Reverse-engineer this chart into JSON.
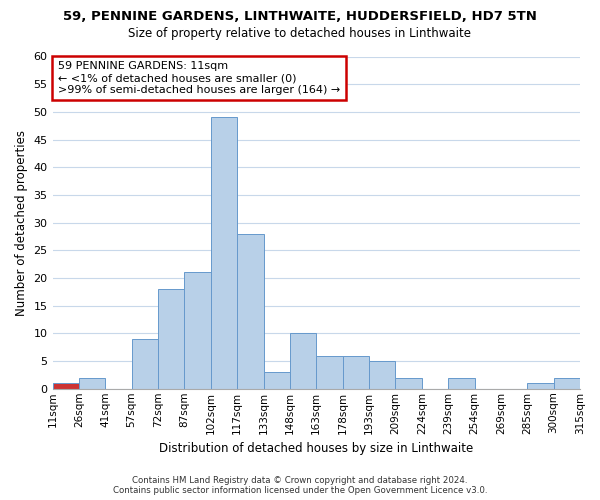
{
  "title": "59, PENNINE GARDENS, LINTHWAITE, HUDDERSFIELD, HD7 5TN",
  "subtitle": "Size of property relative to detached houses in Linthwaite",
  "xlabel": "Distribution of detached houses by size in Linthwaite",
  "ylabel": "Number of detached properties",
  "bin_edges": [
    "11sqm",
    "26sqm",
    "41sqm",
    "57sqm",
    "72sqm",
    "87sqm",
    "102sqm",
    "117sqm",
    "133sqm",
    "148sqm",
    "163sqm",
    "178sqm",
    "193sqm",
    "209sqm",
    "224sqm",
    "239sqm",
    "254sqm",
    "269sqm",
    "285sqm",
    "300sqm",
    "315sqm"
  ],
  "bar_values": [
    1,
    2,
    0,
    9,
    18,
    21,
    49,
    28,
    3,
    10,
    6,
    6,
    5,
    2,
    0,
    2,
    0,
    0,
    1,
    2
  ],
  "bar_color": "#b8d0e8",
  "bar_edge_color": "#6699cc",
  "highlight_bar_color": "#cc3333",
  "ylim": [
    0,
    60
  ],
  "yticks": [
    0,
    5,
    10,
    15,
    20,
    25,
    30,
    35,
    40,
    45,
    50,
    55,
    60
  ],
  "annotation_line1": "59 PENNINE GARDENS: 11sqm",
  "annotation_line2": "← <1% of detached houses are smaller (0)",
  "annotation_line3": ">99% of semi-detached houses are larger (164) →",
  "annotation_box_edge_color": "#cc0000",
  "footer_line1": "Contains HM Land Registry data © Crown copyright and database right 2024.",
  "footer_line2": "Contains public sector information licensed under the Open Government Licence v3.0.",
  "background_color": "#ffffff",
  "grid_color": "#c8d8ea"
}
